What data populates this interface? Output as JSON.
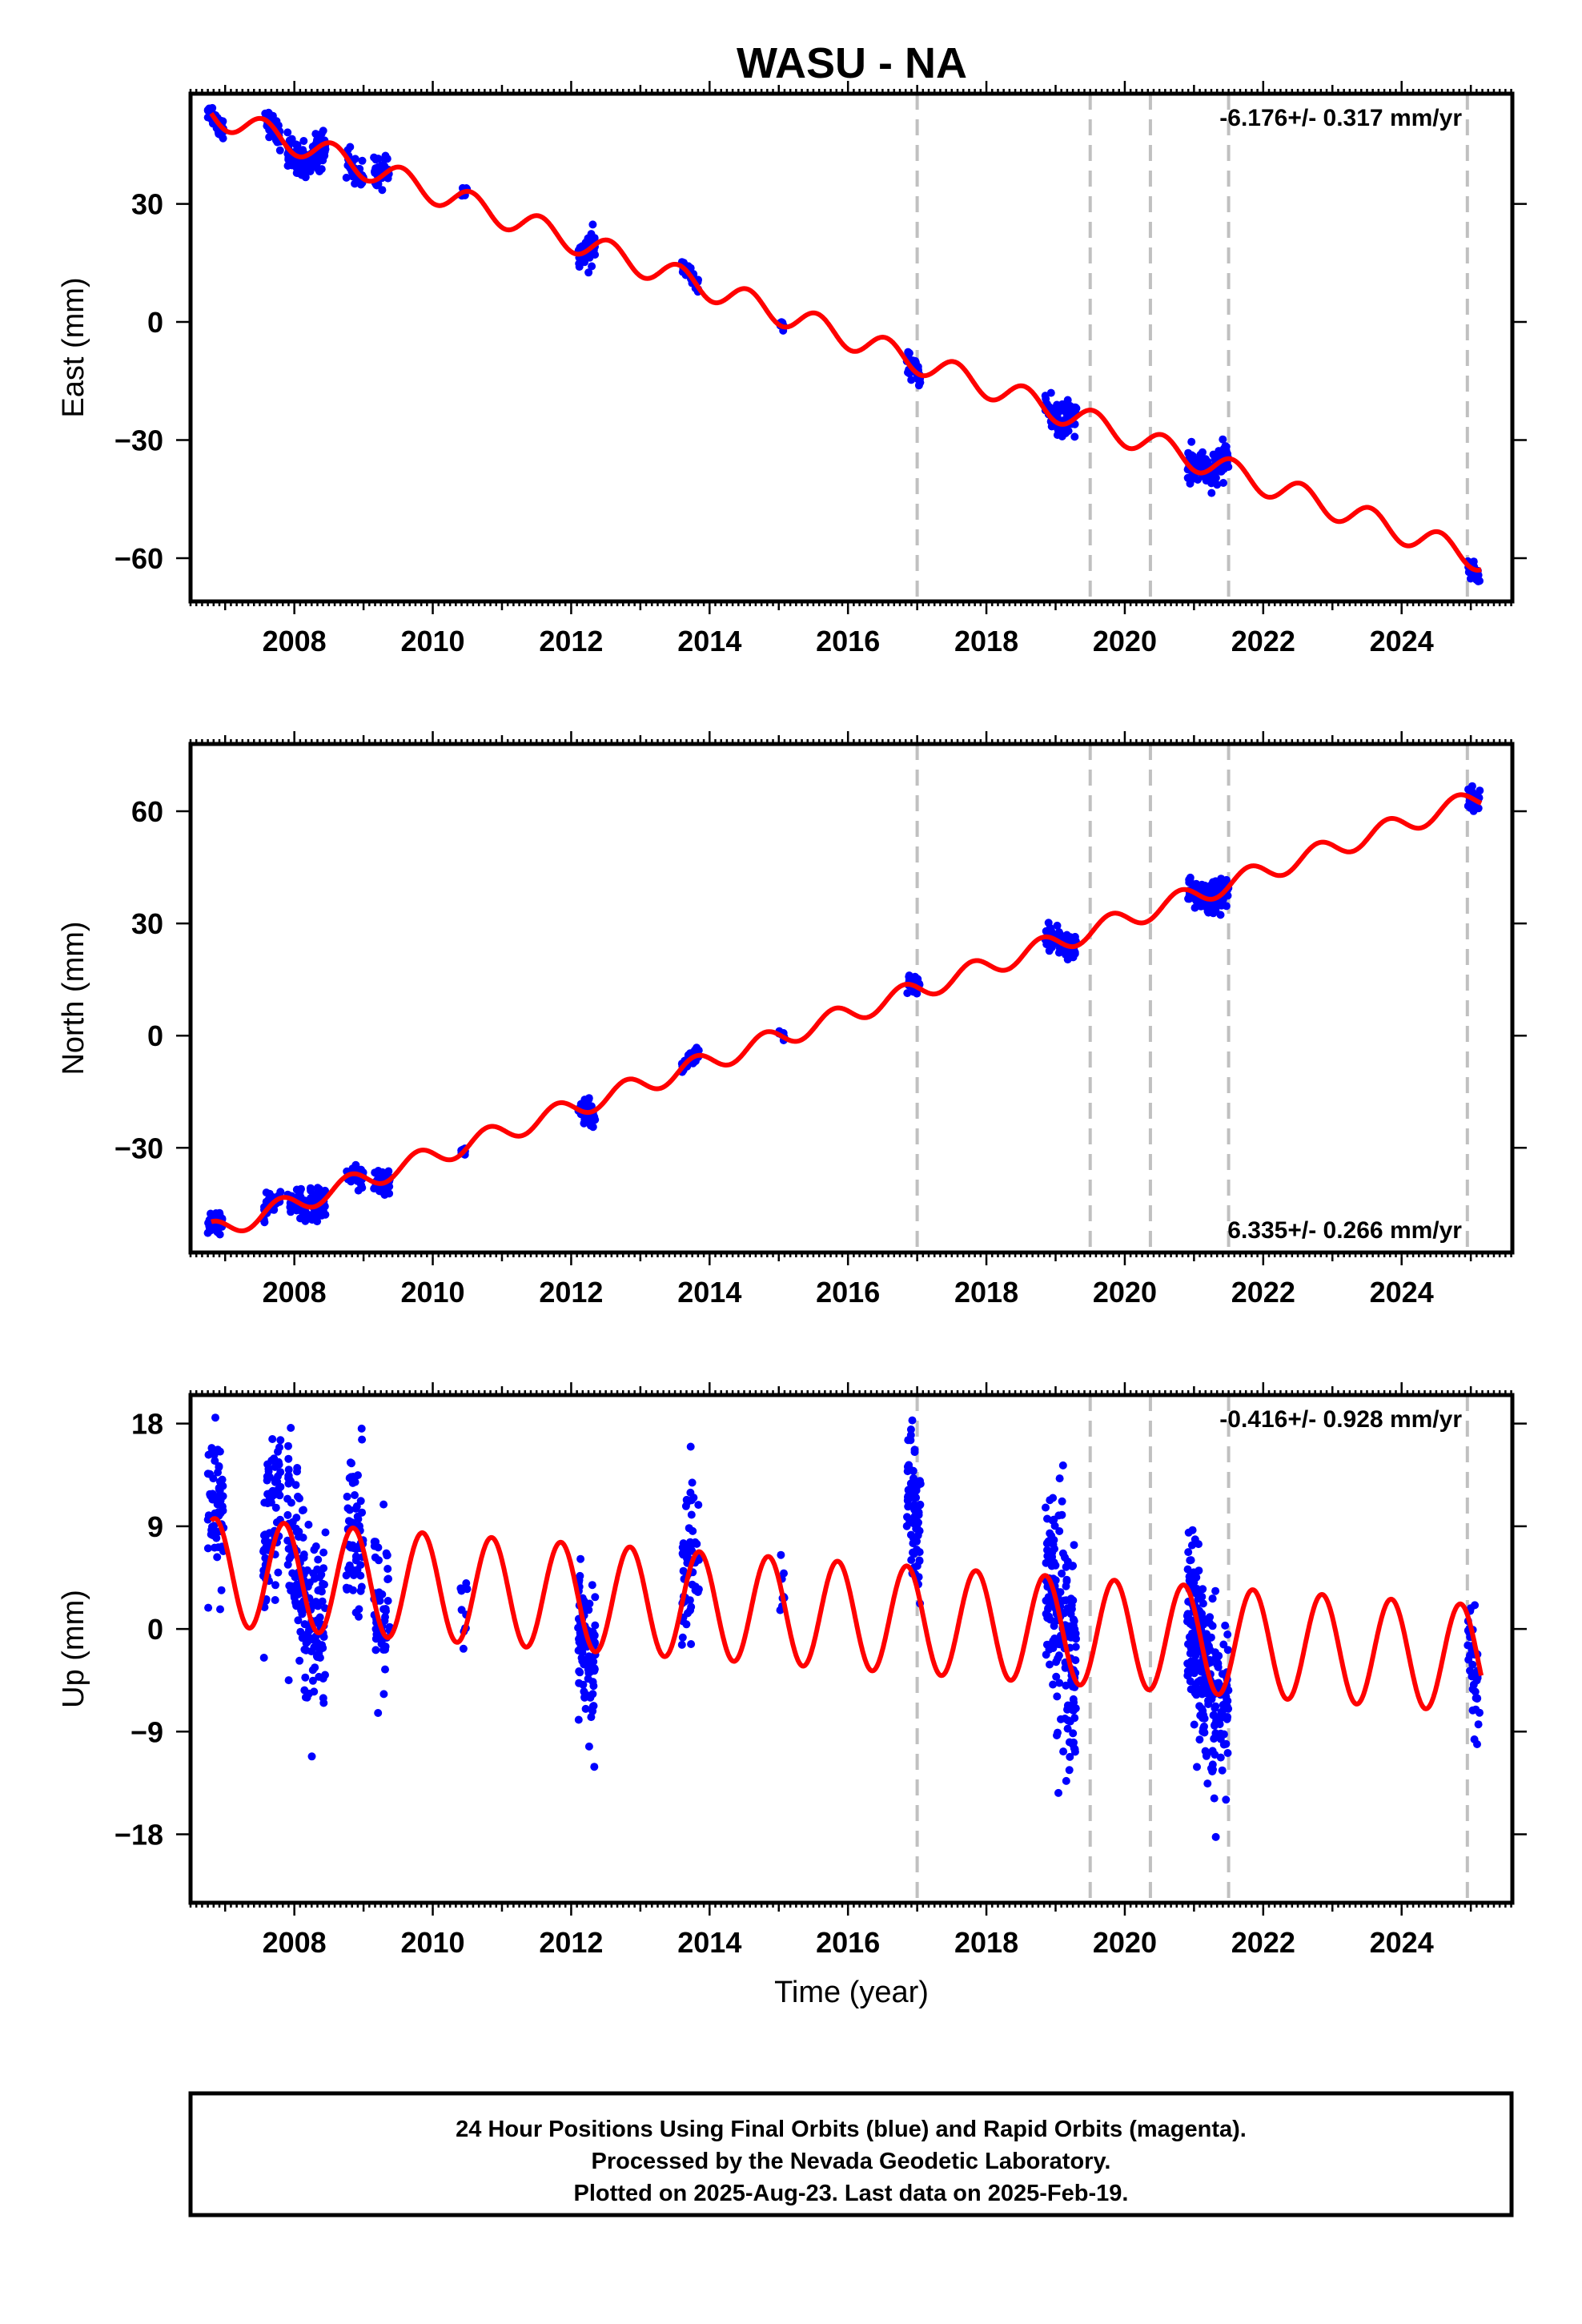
{
  "chart_data": [
    {
      "type": "scatter",
      "title": "WASU - NA",
      "xlabel": "",
      "ylabel": "East (mm)",
      "xlim": [
        2006.5,
        2025.6
      ],
      "ylim": [
        -71,
        58
      ],
      "yticks": [
        -60,
        -30,
        0,
        30
      ],
      "xticks": [
        2008,
        2010,
        2012,
        2014,
        2016,
        2018,
        2020,
        2022,
        2024
      ],
      "annotation": "-6.176+/- 0.317 mm/yr",
      "annotation_position": "top-right",
      "grid": false,
      "vlines": [
        2017.0,
        2019.5,
        2020.37,
        2021.5,
        2024.95
      ],
      "model": {
        "intercept": 53.0,
        "start": 2006.8,
        "end": 2025.15,
        "rate": -6.176,
        "amp": 3.2,
        "phase": 0.3,
        "jumps": []
      },
      "clusters": [
        {
          "start": 2006.75,
          "end": 2006.98,
          "n": 45,
          "spread": 1.4,
          "dy": 0
        },
        {
          "start": 2007.55,
          "end": 2007.8,
          "n": 40,
          "spread": 1.5,
          "dy": 0
        },
        {
          "start": 2007.9,
          "end": 2008.45,
          "n": 110,
          "spread": 2.3,
          "dy": -1
        },
        {
          "start": 2008.75,
          "end": 2009.0,
          "n": 40,
          "spread": 1.5,
          "dy": 0
        },
        {
          "start": 2009.15,
          "end": 2009.38,
          "n": 40,
          "spread": 1.8,
          "dy": 1
        },
        {
          "start": 2010.4,
          "end": 2010.5,
          "n": 10,
          "spread": 1.0,
          "dy": 0
        },
        {
          "start": 2012.1,
          "end": 2012.35,
          "n": 45,
          "spread": 2.0,
          "dy": 0
        },
        {
          "start": 2013.6,
          "end": 2013.85,
          "n": 40,
          "spread": 1.2,
          "dy": 0
        },
        {
          "start": 2015.0,
          "end": 2015.08,
          "n": 8,
          "spread": 0.8,
          "dy": 0
        },
        {
          "start": 2016.85,
          "end": 2017.05,
          "n": 35,
          "spread": 1.3,
          "dy": 0
        },
        {
          "start": 2018.85,
          "end": 2019.3,
          "n": 90,
          "spread": 2.2,
          "dy": 1
        },
        {
          "start": 2020.9,
          "end": 2021.5,
          "n": 120,
          "spread": 2.2,
          "dy": 0
        },
        {
          "start": 2024.95,
          "end": 2025.13,
          "n": 25,
          "spread": 1.2,
          "dy": -1
        }
      ]
    },
    {
      "type": "scatter",
      "title": "",
      "xlabel": "",
      "ylabel": "North (mm)",
      "xlim": [
        2006.5,
        2025.6
      ],
      "ylim": [
        -58,
        78
      ],
      "yticks": [
        -30,
        0,
        30,
        60
      ],
      "xticks": [
        2008,
        2010,
        2012,
        2014,
        2016,
        2018,
        2020,
        2022,
        2024
      ],
      "annotation": "6.335+/- 0.266 mm/yr",
      "annotation_position": "bottom-right",
      "grid": false,
      "vlines": [
        2017.0,
        2019.5,
        2020.37,
        2021.5,
        2024.95
      ],
      "model": {
        "intercept": -52.5,
        "start": 2006.8,
        "end": 2025.15,
        "rate": 6.335,
        "amp": 2.7,
        "phase": 0.55,
        "jumps": []
      },
      "clusters": [
        {
          "start": 2006.75,
          "end": 2006.98,
          "n": 45,
          "spread": 1.4,
          "dy": 0
        },
        {
          "start": 2007.55,
          "end": 2007.8,
          "n": 40,
          "spread": 1.5,
          "dy": 0
        },
        {
          "start": 2007.9,
          "end": 2008.45,
          "n": 110,
          "spread": 2.0,
          "dy": 0
        },
        {
          "start": 2008.75,
          "end": 2009.0,
          "n": 40,
          "spread": 1.5,
          "dy": 0
        },
        {
          "start": 2009.15,
          "end": 2009.38,
          "n": 40,
          "spread": 1.8,
          "dy": 0
        },
        {
          "start": 2010.4,
          "end": 2010.5,
          "n": 10,
          "spread": 1.0,
          "dy": 0
        },
        {
          "start": 2012.1,
          "end": 2012.35,
          "n": 45,
          "spread": 1.6,
          "dy": 0
        },
        {
          "start": 2013.6,
          "end": 2013.85,
          "n": 40,
          "spread": 1.2,
          "dy": 0
        },
        {
          "start": 2015.0,
          "end": 2015.08,
          "n": 8,
          "spread": 0.8,
          "dy": 0
        },
        {
          "start": 2016.85,
          "end": 2017.05,
          "n": 35,
          "spread": 1.3,
          "dy": 0
        },
        {
          "start": 2018.85,
          "end": 2019.3,
          "n": 90,
          "spread": 1.8,
          "dy": 0
        },
        {
          "start": 2020.9,
          "end": 2021.5,
          "n": 120,
          "spread": 2.0,
          "dy": 0
        },
        {
          "start": 2024.95,
          "end": 2025.13,
          "n": 25,
          "spread": 1.5,
          "dy": 0
        }
      ]
    },
    {
      "type": "scatter",
      "title": "",
      "xlabel": "Time (year)",
      "ylabel": "Up (mm)",
      "xlim": [
        2006.5,
        2025.6
      ],
      "ylim": [
        -24,
        20.5
      ],
      "yticks": [
        -18,
        -9,
        0,
        9,
        18
      ],
      "xticks": [
        2008,
        2010,
        2012,
        2014,
        2016,
        2018,
        2020,
        2022,
        2024
      ],
      "annotation": "-0.416+/- 0.928 mm/yr",
      "annotation_position": "top-right",
      "grid": false,
      "vlines": [
        2017.0,
        2019.5,
        2020.37,
        2021.5,
        2024.95
      ],
      "model": {
        "intercept": 5.0,
        "start": 2006.8,
        "end": 2025.15,
        "rate": -0.416,
        "amp": 4.7,
        "phase": 0.6,
        "jumps": []
      },
      "clusters": [
        {
          "start": 2006.75,
          "end": 2006.98,
          "n": 60,
          "spread": 3.5,
          "dy": 1
        },
        {
          "start": 2007.55,
          "end": 2007.8,
          "n": 70,
          "spread": 3.2,
          "dy": 3
        },
        {
          "start": 2007.9,
          "end": 2008.45,
          "n": 170,
          "spread": 4.0,
          "dy": 0
        },
        {
          "start": 2008.75,
          "end": 2009.0,
          "n": 60,
          "spread": 3.5,
          "dy": 1
        },
        {
          "start": 2009.15,
          "end": 2009.38,
          "n": 50,
          "spread": 3.8,
          "dy": 1
        },
        {
          "start": 2010.4,
          "end": 2010.5,
          "n": 10,
          "spread": 2.5,
          "dy": 0
        },
        {
          "start": 2012.1,
          "end": 2012.35,
          "n": 100,
          "spread": 3.5,
          "dy": -2
        },
        {
          "start": 2013.6,
          "end": 2013.85,
          "n": 60,
          "spread": 3.8,
          "dy": 1
        },
        {
          "start": 2015.0,
          "end": 2015.08,
          "n": 8,
          "spread": 1.5,
          "dy": 0
        },
        {
          "start": 2016.85,
          "end": 2017.05,
          "n": 80,
          "spread": 3.5,
          "dy": 6
        },
        {
          "start": 2018.85,
          "end": 2019.3,
          "n": 190,
          "spread": 5.0,
          "dy": -1
        },
        {
          "start": 2020.9,
          "end": 2021.5,
          "n": 260,
          "spread": 3.5,
          "dy": -1
        },
        {
          "start": 2024.95,
          "end": 2025.13,
          "n": 40,
          "spread": 3.5,
          "dy": -2
        }
      ]
    }
  ],
  "footer": {
    "line1": "24 Hour Positions Using Final Orbits (blue) and Rapid Orbits (magenta).",
    "line2": "Processed by the Nevada Geodetic Laboratory.",
    "line3": "Plotted on 2025-Aug-23. Last data on 2025-Feb-19."
  },
  "colors": {
    "points": "#0000ff",
    "model": "#ff0000",
    "vline": "#c0c0c0",
    "frame": "#000000"
  }
}
